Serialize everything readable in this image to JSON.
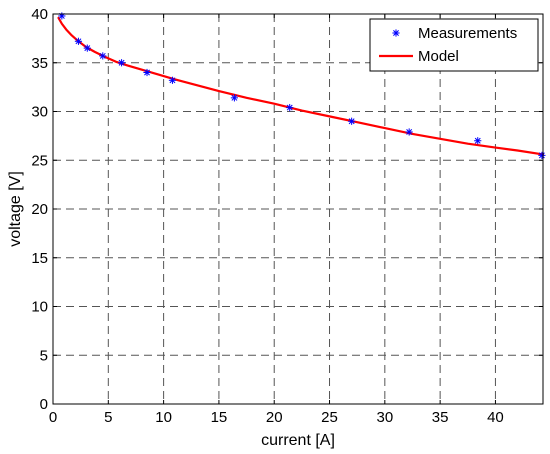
{
  "chart_data": {
    "type": "line",
    "title": "",
    "xlabel": "current [A]",
    "ylabel": "voltage [V]",
    "xlim": [
      0,
      44.3
    ],
    "ylim": [
      0,
      40
    ],
    "x_ticks": [
      0,
      5,
      10,
      15,
      20,
      25,
      30,
      35,
      40
    ],
    "y_ticks": [
      0,
      5,
      10,
      15,
      20,
      25,
      30,
      35,
      40
    ],
    "grid": true,
    "legend_position": "top-right",
    "series": [
      {
        "name": "Measurements",
        "kind": "scatter",
        "marker": "asterisk",
        "color": "#0000ff",
        "x": [
          0.8,
          2.3,
          3.1,
          4.5,
          6.2,
          8.5,
          10.8,
          16.4,
          21.4,
          27.0,
          32.2,
          38.4,
          44.2
        ],
        "y": [
          39.8,
          37.2,
          36.5,
          35.7,
          35.0,
          34.0,
          33.2,
          31.4,
          30.4,
          29.0,
          27.9,
          27.0,
          25.5
        ]
      },
      {
        "name": "Model",
        "kind": "line",
        "color": "#ff0000",
        "x": [
          0.5,
          0.8,
          1.2,
          1.7,
          2.3,
          3.0,
          3.8,
          4.7,
          5.7,
          6.8,
          8.0,
          9.5,
          11.0,
          13.0,
          15.0,
          17.5,
          20.0,
          22.5,
          25.0,
          27.5,
          30.0,
          32.5,
          35.0,
          37.5,
          40.0,
          42.0,
          44.3
        ],
        "y": [
          39.6,
          39.0,
          38.4,
          37.8,
          37.2,
          36.6,
          36.1,
          35.6,
          35.1,
          34.7,
          34.3,
          33.8,
          33.3,
          32.7,
          32.1,
          31.4,
          30.8,
          30.1,
          29.5,
          28.9,
          28.3,
          27.7,
          27.2,
          26.7,
          26.3,
          26.0,
          25.6
        ]
      }
    ]
  }
}
